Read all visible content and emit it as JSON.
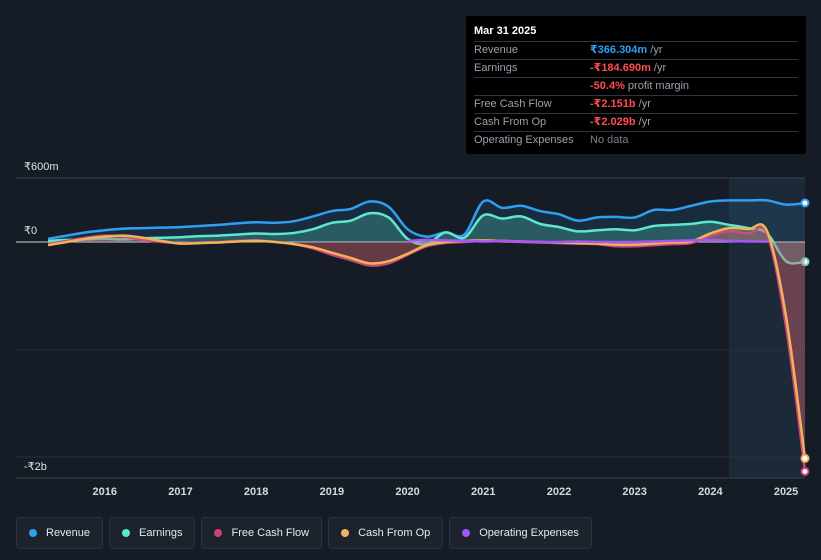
{
  "tooltip": {
    "date": "Mar 31 2025",
    "rows": [
      {
        "label": "Revenue",
        "value": "₹366.304m",
        "unit": " /yr",
        "color": "#2f9ff2"
      },
      {
        "label": "Earnings",
        "value": "-₹184.690m",
        "unit": " /yr",
        "color": "#ff4d4d"
      },
      {
        "label": "",
        "value": "-50.4%",
        "unit": " profit margin",
        "color": "#ff4d4d"
      },
      {
        "label": "Free Cash Flow",
        "value": "-₹2.151b",
        "unit": " /yr",
        "color": "#ff4d4d"
      },
      {
        "label": "Cash From Op",
        "value": "-₹2.029b",
        "unit": " /yr",
        "color": "#ff4d4d"
      },
      {
        "label": "Operating Expenses",
        "value": "No data",
        "unit": "",
        "color": "#7c828b"
      }
    ]
  },
  "y_labels": {
    "top": "₹600m",
    "zero": "₹0",
    "bottom": "-₹2b"
  },
  "legend": [
    {
      "label": "Revenue",
      "color": "#2f9ff2"
    },
    {
      "label": "Earnings",
      "color": "#5ee6d0"
    },
    {
      "label": "Free Cash Flow",
      "color": "#c7447a"
    },
    {
      "label": "Cash From Op",
      "color": "#f0b35a"
    },
    {
      "label": "Operating Expenses",
      "color": "#a855f7"
    }
  ],
  "chart_data": {
    "type": "line",
    "title": "",
    "xlabel": "",
    "ylabel": "INR",
    "ylim": [
      -2200,
      600
    ],
    "x_ticks": [
      "2016",
      "2017",
      "2018",
      "2019",
      "2020",
      "2021",
      "2022",
      "2023",
      "2024",
      "2025"
    ],
    "highlight_from": 2024.25,
    "x": [
      2015.25,
      2015.5,
      2015.75,
      2016.0,
      2016.25,
      2016.5,
      2016.75,
      2017.0,
      2017.25,
      2017.5,
      2017.75,
      2018.0,
      2018.25,
      2018.5,
      2018.75,
      2019.0,
      2019.25,
      2019.5,
      2019.75,
      2020.0,
      2020.25,
      2020.5,
      2020.75,
      2021.0,
      2021.25,
      2021.5,
      2021.75,
      2022.0,
      2022.25,
      2022.5,
      2022.75,
      2023.0,
      2023.25,
      2023.5,
      2023.75,
      2024.0,
      2024.25,
      2024.5,
      2024.75,
      2025.0,
      2025.25
    ],
    "series": [
      {
        "name": "Revenue",
        "color": "#2f9ff2",
        "values": [
          30,
          60,
          90,
          110,
          125,
          130,
          135,
          140,
          150,
          160,
          175,
          185,
          180,
          195,
          240,
          290,
          310,
          380,
          330,
          120,
          50,
          90,
          70,
          380,
          320,
          340,
          290,
          260,
          200,
          230,
          235,
          230,
          300,
          300,
          340,
          380,
          390,
          390,
          390,
          350,
          366
        ]
      },
      {
        "name": "Earnings",
        "color": "#5ee6d0",
        "values": [
          10,
          20,
          25,
          30,
          25,
          35,
          40,
          45,
          55,
          60,
          70,
          80,
          75,
          85,
          120,
          180,
          200,
          270,
          230,
          30,
          -20,
          90,
          40,
          250,
          220,
          240,
          170,
          140,
          100,
          110,
          120,
          110,
          150,
          160,
          170,
          190,
          160,
          130,
          80,
          -180,
          -185
        ]
      },
      {
        "name": "Free Cash Flow",
        "color": "#c7447a",
        "values": [
          -20,
          10,
          40,
          60,
          50,
          20,
          0,
          -10,
          -5,
          0,
          10,
          15,
          0,
          -20,
          -60,
          -120,
          -170,
          -220,
          -200,
          -120,
          -40,
          -10,
          0,
          10,
          5,
          0,
          -5,
          -10,
          -15,
          -20,
          -40,
          -40,
          -30,
          -20,
          -10,
          60,
          100,
          80,
          70,
          -800,
          -2151
        ]
      },
      {
        "name": "Cash From Op",
        "color": "#f0b35a",
        "values": [
          -30,
          0,
          30,
          50,
          60,
          40,
          10,
          -15,
          -10,
          -5,
          5,
          10,
          0,
          -20,
          -50,
          -100,
          -150,
          -200,
          -180,
          -110,
          -30,
          0,
          10,
          15,
          10,
          5,
          0,
          -5,
          -10,
          -15,
          -25,
          -25,
          -15,
          -5,
          5,
          80,
          130,
          120,
          100,
          -700,
          -2029
        ]
      },
      {
        "name": "Operating Expenses",
        "color": "#a855f7",
        "values": [
          null,
          null,
          null,
          null,
          null,
          null,
          null,
          null,
          null,
          null,
          null,
          null,
          null,
          null,
          null,
          null,
          null,
          null,
          null,
          10,
          20,
          15,
          10,
          5,
          10,
          5,
          0,
          0,
          5,
          0,
          0,
          0,
          5,
          10,
          15,
          20,
          10,
          5,
          5,
          null,
          null
        ]
      }
    ]
  }
}
